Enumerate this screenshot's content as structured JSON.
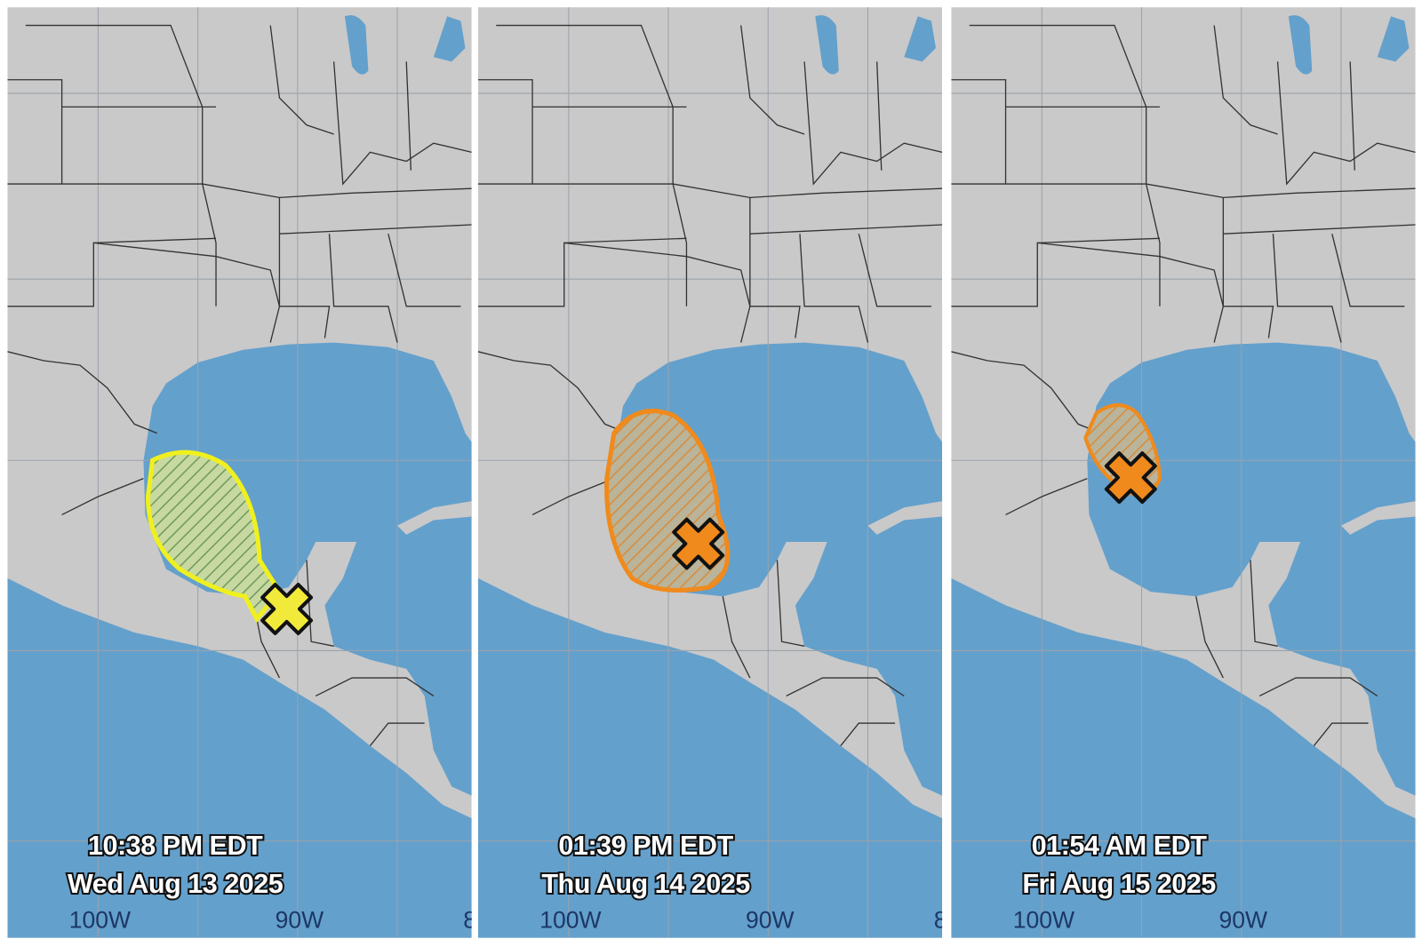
{
  "panels": [
    {
      "time": "10:38 PM EDT",
      "date": "Wed Aug 13 2025",
      "longitudes": [
        "100W",
        "90W",
        "8"
      ]
    },
    {
      "time": "01:39 PM EDT",
      "date": "Thu Aug 14 2025",
      "longitudes": [
        "100W",
        "90W",
        "8"
      ]
    },
    {
      "time": "01:54 AM EDT",
      "date": "Fri Aug 15 2025",
      "longitudes": [
        "100W",
        "90W"
      ]
    }
  ]
}
